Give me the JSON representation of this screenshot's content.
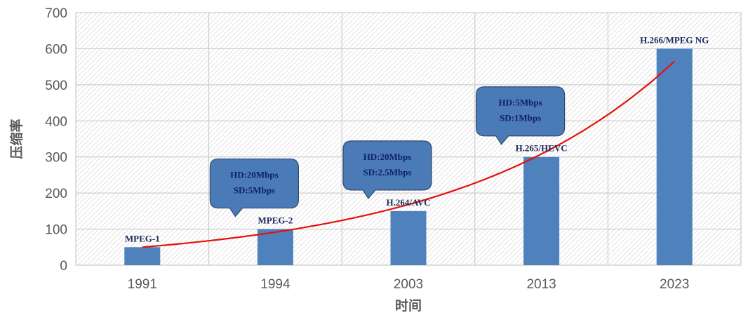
{
  "chart_data": {
    "type": "bar",
    "title": "",
    "xlabel": "时间",
    "ylabel": "压缩率",
    "ylim": [
      0,
      700
    ],
    "yticks": [
      0,
      100,
      200,
      300,
      400,
      500,
      600,
      700
    ],
    "grid": true,
    "categories": [
      "1991",
      "1994",
      "2003",
      "2013",
      "2023"
    ],
    "values": [
      50,
      100,
      150,
      300,
      600
    ],
    "bar_color": "#4f81bd",
    "bar_labels": [
      "MPEG-1",
      "MPEG-2",
      "H.264/AVC",
      "H.265/HEVC",
      "H.266/MPEG NG"
    ],
    "callouts": [
      {
        "category": "1994",
        "lines": [
          "HD:20Mbps",
          "SD:5Mbps"
        ]
      },
      {
        "category": "2003",
        "lines": [
          "HD:20Mbps",
          "SD:2.5Mbps"
        ]
      },
      {
        "category": "2013",
        "lines": [
          "HD:5Mbps",
          "SD:1Mbps"
        ]
      }
    ],
    "callout_color": "#4a7bb7",
    "trend": {
      "type": "exponential",
      "color": "#e3120b",
      "start_value": 50,
      "end_value": 565
    }
  }
}
